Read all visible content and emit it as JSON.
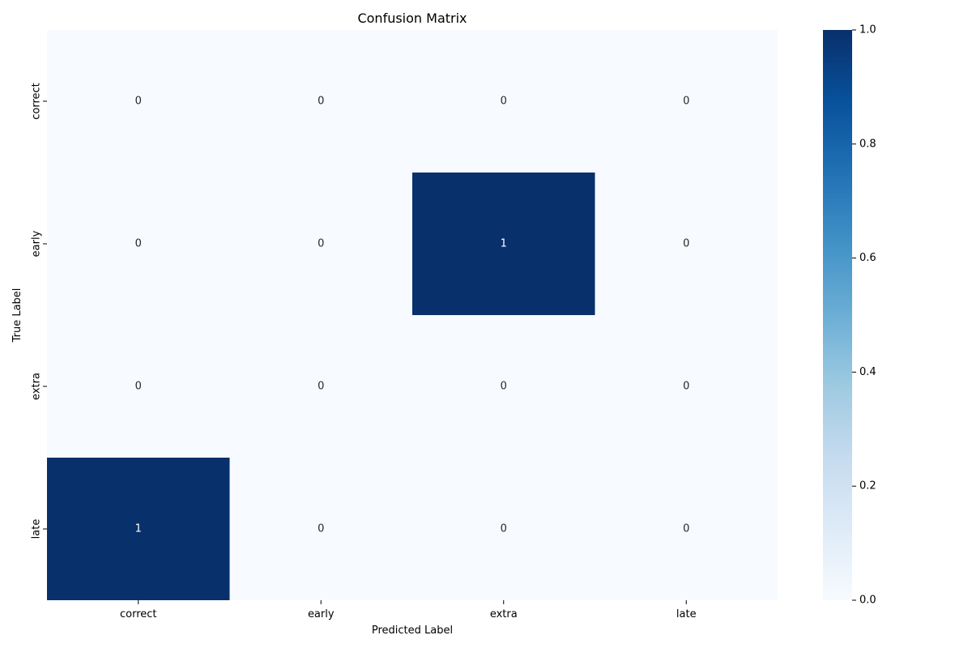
{
  "chart_data": {
    "type": "heatmap",
    "title": "Confusion Matrix",
    "xlabel": "Predicted Label",
    "ylabel": "True Label",
    "x_categories": [
      "correct",
      "early",
      "extra",
      "late"
    ],
    "y_categories": [
      "correct",
      "early",
      "extra",
      "late"
    ],
    "values": [
      [
        0,
        0,
        0,
        0
      ],
      [
        0,
        0,
        1,
        0
      ],
      [
        0,
        0,
        0,
        0
      ],
      [
        1,
        0,
        0,
        0
      ]
    ],
    "colorbar": {
      "min": 0.0,
      "max": 1.0,
      "ticks": [
        "0.0",
        "0.2",
        "0.4",
        "0.6",
        "0.8",
        "1.0"
      ],
      "colormap": "Blues"
    },
    "colors": {
      "low": "#f7fbff",
      "high": "#08306b",
      "text_on_low": "#262626",
      "text_on_high": "#ffffff"
    }
  }
}
